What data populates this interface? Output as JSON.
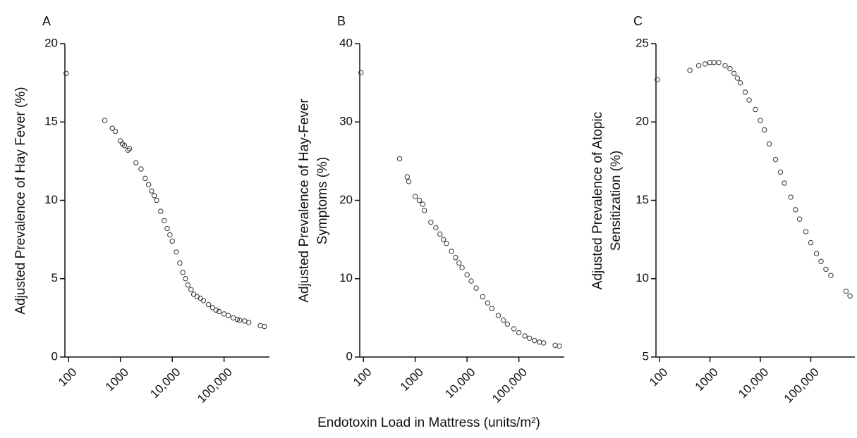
{
  "xlabel": "Endotoxin Load in Mattress (units/m²)",
  "chart_data": [
    {
      "type": "scatter",
      "panel": "A",
      "ylabel": [
        "Adjusted Prevalence of Hay Fever (%)"
      ],
      "xscale": "log",
      "color": "#333333",
      "x": [
        90,
        500,
        700,
        800,
        1000,
        1100,
        1200,
        1400,
        1500,
        2000,
        2500,
        3000,
        3500,
        4000,
        4500,
        5000,
        6000,
        7000,
        8000,
        9000,
        10000,
        12000,
        14000,
        16000,
        18000,
        20000,
        23000,
        26000,
        30000,
        35000,
        40000,
        50000,
        60000,
        70000,
        80000,
        100000,
        120000,
        150000,
        180000,
        200000,
        250000,
        300000,
        500000,
        600000
      ],
      "values": [
        18.1,
        15.1,
        14.6,
        14.4,
        13.8,
        13.6,
        13.5,
        13.2,
        13.3,
        12.4,
        12.0,
        11.4,
        11.0,
        10.6,
        10.3,
        10.0,
        9.3,
        8.7,
        8.2,
        7.8,
        7.4,
        6.7,
        6.0,
        5.4,
        5.0,
        4.6,
        4.3,
        4.0,
        3.85,
        3.75,
        3.6,
        3.35,
        3.15,
        3.0,
        2.9,
        2.75,
        2.65,
        2.5,
        2.4,
        2.35,
        2.3,
        2.2,
        2.0,
        1.95
      ],
      "xlim": [
        85,
        750000
      ],
      "xticks": [
        100,
        1000,
        {
          "value": 10000,
          "label": "10,000"
        },
        {
          "value": 100000,
          "label": "100,000"
        }
      ],
      "ylim": [
        0,
        20
      ],
      "yticks": [
        0,
        5,
        10,
        15,
        20
      ]
    },
    {
      "type": "scatter",
      "panel": "B",
      "ylabel": [
        "Adjusted Prevalence of Hay-Fever",
        "Symptoms (%)"
      ],
      "xscale": "log",
      "color": "#333333",
      "x": [
        90,
        500,
        700,
        750,
        1000,
        1200,
        1400,
        1500,
        2000,
        2500,
        3000,
        3500,
        4000,
        5000,
        6000,
        7000,
        8000,
        10000,
        12000,
        15000,
        20000,
        25000,
        30000,
        40000,
        50000,
        60000,
        80000,
        100000,
        130000,
        160000,
        200000,
        250000,
        300000,
        500000,
        600000
      ],
      "values": [
        36.3,
        25.3,
        23.0,
        22.4,
        20.5,
        20.0,
        19.5,
        18.7,
        17.2,
        16.5,
        15.7,
        15.0,
        14.5,
        13.5,
        12.7,
        12.0,
        11.4,
        10.5,
        9.7,
        8.8,
        7.7,
        6.9,
        6.2,
        5.3,
        4.7,
        4.2,
        3.6,
        3.1,
        2.7,
        2.4,
        2.1,
        1.9,
        1.8,
        1.5,
        1.4
      ],
      "xlim": [
        85,
        750000
      ],
      "xticks": [
        100,
        1000,
        {
          "value": 10000,
          "label": "10,000"
        },
        {
          "value": 100000,
          "label": "100,000"
        }
      ],
      "ylim": [
        0,
        40
      ],
      "yticks": [
        0,
        10,
        20,
        30,
        40
      ]
    },
    {
      "type": "scatter",
      "panel": "C",
      "ylabel": [
        "Adjusted Prevalence of Atopic",
        "Sensitization (%)"
      ],
      "xscale": "log",
      "color": "#333333",
      "x": [
        90,
        400,
        600,
        800,
        1000,
        1200,
        1500,
        2000,
        2500,
        3000,
        3500,
        4000,
        5000,
        6000,
        8000,
        10000,
        12000,
        15000,
        20000,
        25000,
        30000,
        40000,
        50000,
        60000,
        80000,
        100000,
        130000,
        160000,
        200000,
        250000,
        500000,
        600000
      ],
      "values": [
        22.7,
        23.3,
        23.6,
        23.7,
        23.8,
        23.8,
        23.8,
        23.6,
        23.4,
        23.1,
        22.8,
        22.5,
        21.9,
        21.4,
        20.8,
        20.1,
        19.5,
        18.6,
        17.6,
        16.8,
        16.1,
        15.2,
        14.4,
        13.8,
        13.0,
        12.3,
        11.6,
        11.1,
        10.6,
        10.2,
        9.2,
        8.9
      ],
      "xlim": [
        85,
        750000
      ],
      "xticks": [
        100,
        1000,
        {
          "value": 10000,
          "label": "10,000"
        },
        {
          "value": 100000,
          "label": "100,000"
        }
      ],
      "ylim": [
        5,
        25
      ],
      "yticks": [
        5,
        10,
        15,
        20,
        25
      ]
    }
  ]
}
